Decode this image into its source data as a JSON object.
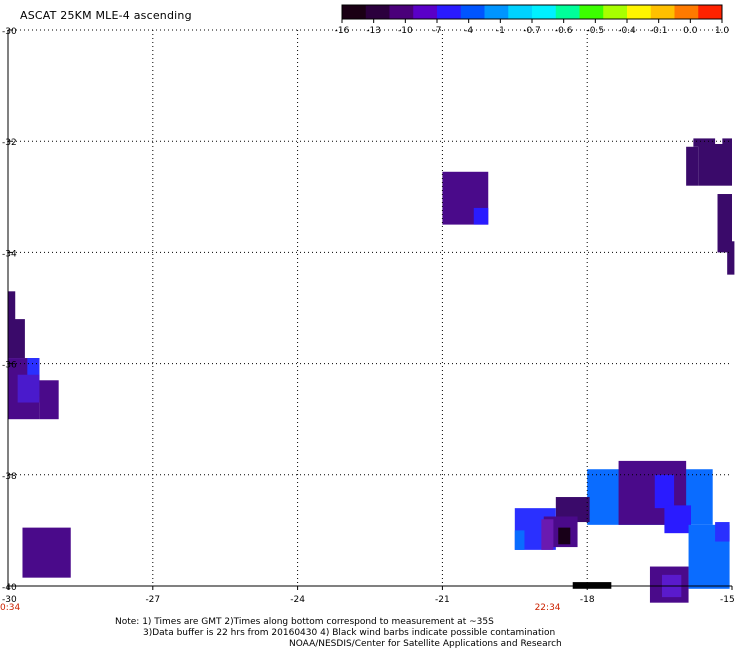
{
  "title": "ASCAT 25KM MLE-4 ascending",
  "colorbar": {
    "colors": [
      "#1a0014",
      "#2b003d",
      "#4a007a",
      "#5a00c8",
      "#2a1bff",
      "#0055ff",
      "#0095ff",
      "#00d2ff",
      "#00f0ff",
      "#00ff9a",
      "#3cff00",
      "#a8ff00",
      "#fff500",
      "#ffc000",
      "#ff7a00",
      "#ff2200"
    ],
    "labels": [
      "-16",
      "-13",
      "-10",
      "-7",
      "-4",
      "-1",
      "-0.7",
      "-0.6",
      "-0.5",
      "-0.4",
      "-0.1",
      "0.0",
      "1.0"
    ]
  },
  "axes": {
    "lon_ticks": [
      "-30",
      "-27",
      "-24",
      "-21",
      "-18",
      "-15"
    ],
    "lat_ticks": [
      "-30",
      "-32",
      "-34",
      "-36",
      "-38",
      "-40"
    ],
    "time_labels": [
      {
        "text": "0:34",
        "lon": -30.0
      },
      {
        "text": "22:34",
        "lon": -18.8
      }
    ],
    "time_color": "#cc2200"
  },
  "notes": {
    "line1": "Note: 1) Times are GMT 2)Times along bottom correspond to measurement at ~35S",
    "line2": "3)Data buffer is 22 hrs from 20160430 4) Black wind barbs indicate possible contamination",
    "line3": "NOAA/NESDIS/Center for Satellite Applications and Research"
  },
  "swaths": [
    {
      "lon0": -29.7,
      "lon1": -28.7,
      "lat0": -38.95,
      "lat1": -39.85,
      "color": "#4a0a8a"
    },
    {
      "lon0": -30.0,
      "lon1": -29.85,
      "lat0": -34.7,
      "lat1": -35.5,
      "color": "#3a0a6a"
    },
    {
      "lon0": -30.0,
      "lon1": -29.65,
      "lat0": -35.2,
      "lat1": -35.9,
      "color": "#3a0a6a"
    },
    {
      "lon0": -30.0,
      "lon1": -29.35,
      "lat0": -35.9,
      "lat1": -37.0,
      "color": "#4a0a8a"
    },
    {
      "lon0": -29.6,
      "lon1": -29.35,
      "lat0": -35.9,
      "lat1": -36.6,
      "color": "#2a30ff"
    },
    {
      "lon0": -29.8,
      "lon1": -29.35,
      "lat0": -36.2,
      "lat1": -36.7,
      "color": "#4a1acc"
    },
    {
      "lon0": -29.35,
      "lon1": -28.95,
      "lat0": -36.3,
      "lat1": -37.0,
      "color": "#4a0a8a"
    },
    {
      "lon0": -21.0,
      "lon1": -20.05,
      "lat0": -32.55,
      "lat1": -33.5,
      "color": "#4a0a8a"
    },
    {
      "lon0": -20.35,
      "lon1": -20.05,
      "lat0": -33.2,
      "lat1": -33.5,
      "color": "#2a1bff"
    },
    {
      "lon0": -15.8,
      "lon1": -15.35,
      "lat0": -31.95,
      "lat1": -32.1,
      "color": "#3a0a6a"
    },
    {
      "lon0": -15.7,
      "lon1": -15.0,
      "lat0": -32.05,
      "lat1": -32.8,
      "color": "#3a0a6a"
    },
    {
      "lon0": -15.95,
      "lon1": -15.7,
      "lat0": -32.1,
      "lat1": -32.8,
      "color": "#3a0a6a"
    },
    {
      "lon0": -15.2,
      "lon1": -15.0,
      "lat0": -31.95,
      "lat1": -32.1,
      "color": "#3a0a6a"
    },
    {
      "lon0": -15.3,
      "lon1": -15.0,
      "lat0": -32.95,
      "lat1": -34.0,
      "color": "#3a0a6a"
    },
    {
      "lon0": -15.1,
      "lon1": -14.95,
      "lat0": -33.8,
      "lat1": -34.4,
      "color": "#3a0a6a"
    },
    {
      "lon0": -18.0,
      "lon1": -15.4,
      "lat0": -37.9,
      "lat1": -38.9,
      "color": "#0a6cff"
    },
    {
      "lon0": -17.35,
      "lon1": -15.95,
      "lat0": -37.75,
      "lat1": -38.9,
      "color": "#4a0a8a"
    },
    {
      "lon0": -16.6,
      "lon1": -16.2,
      "lat0": -38.0,
      "lat1": -38.6,
      "color": "#2a1bff"
    },
    {
      "lon0": -16.4,
      "lon1": -15.85,
      "lat0": -38.55,
      "lat1": -39.05,
      "color": "#2a1bff"
    },
    {
      "lon0": -15.9,
      "lon1": -15.05,
      "lat0": -38.9,
      "lat1": -40.05,
      "color": "#0a6cff"
    },
    {
      "lon0": -15.35,
      "lon1": -15.05,
      "lat0": -38.85,
      "lat1": -39.2,
      "color": "#2a30ff"
    },
    {
      "lon0": -16.7,
      "lon1": -15.9,
      "lat0": -39.65,
      "lat1": -40.3,
      "color": "#4a0a8a"
    },
    {
      "lon0": -16.45,
      "lon1": -16.05,
      "lat0": -39.8,
      "lat1": -40.2,
      "color": "#5a1acc"
    },
    {
      "lon0": -18.65,
      "lon1": -17.95,
      "lat0": -38.4,
      "lat1": -38.85,
      "color": "#3a0a6a"
    },
    {
      "lon0": -19.5,
      "lon1": -18.65,
      "lat0": -38.6,
      "lat1": -39.35,
      "color": "#2a30ff"
    },
    {
      "lon0": -19.5,
      "lon1": -19.3,
      "lat0": -39.0,
      "lat1": -39.35,
      "color": "#0a6cff"
    },
    {
      "lon0": -18.9,
      "lon1": -18.2,
      "lat0": -38.75,
      "lat1": -39.3,
      "color": "#4a0a8a"
    },
    {
      "lon0": -18.6,
      "lon1": -18.35,
      "lat0": -38.95,
      "lat1": -39.25,
      "color": "#180018"
    },
    {
      "lon0": -18.95,
      "lon1": -18.7,
      "lat0": -38.8,
      "lat1": -39.35,
      "color": "#6a1ab0"
    }
  ],
  "barb_marker": {
    "lon0": -18.3,
    "lon1": -17.5,
    "lat0": -39.93,
    "lat1": -40.05,
    "color": "#000000"
  }
}
